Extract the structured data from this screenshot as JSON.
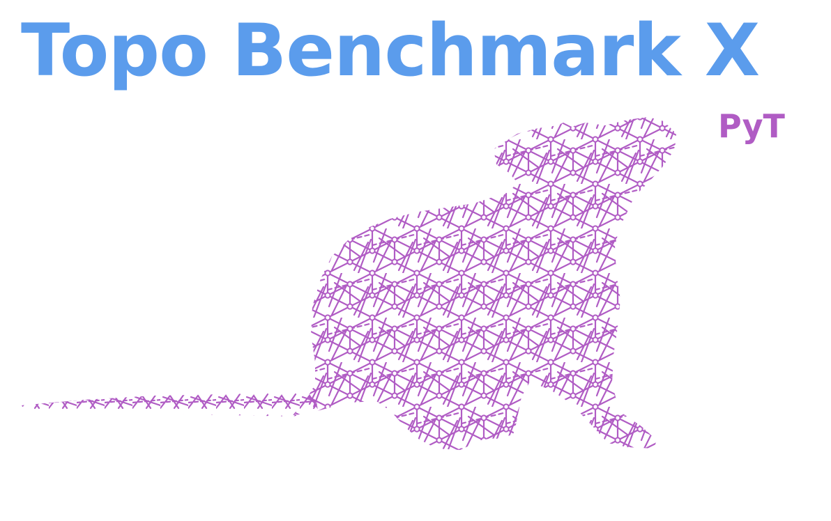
{
  "logo": {
    "title": "Topo Benchmark X",
    "subtitle": "PyT",
    "title_color": "#5b9cec",
    "accent_color": "#b05cc4",
    "mascot_icon": "rat-network-icon"
  }
}
